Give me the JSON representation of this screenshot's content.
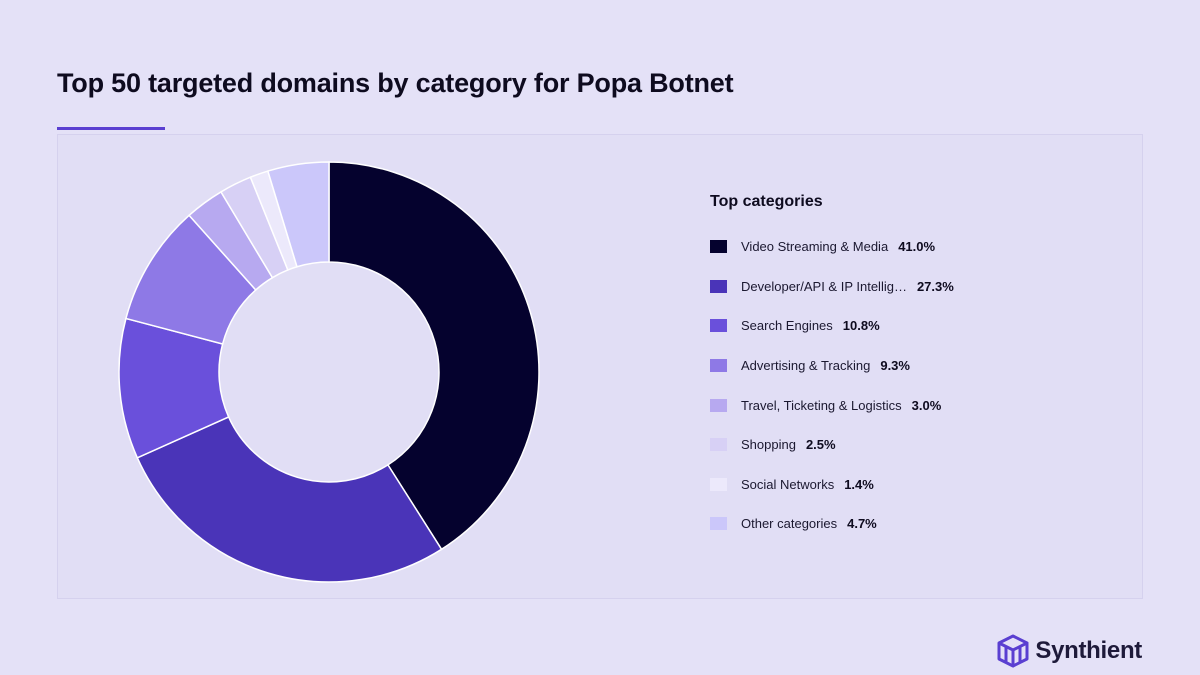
{
  "page": {
    "title": "Top 50 targeted domains by category for Popa Botnet",
    "brand_name": "Synthient"
  },
  "chart_data": {
    "type": "pie",
    "legend_title": "Top categories",
    "legend_position": "right",
    "categories": [
      "Video Streaming & Media",
      "Developer/API & IP Intellig…",
      "Search Engines",
      "Advertising & Tracking",
      "Travel, Ticketing & Logistics",
      "Shopping",
      "Social Networks",
      "Other categories"
    ],
    "values": [
      41.0,
      27.3,
      10.8,
      9.3,
      3.0,
      2.5,
      1.4,
      4.7
    ],
    "value_labels": [
      "41.0%",
      "27.3%",
      "10.8%",
      "9.3%",
      "3.0%",
      "2.5%",
      "1.4%",
      "4.7%"
    ],
    "colors": [
      "#05022E",
      "#4A34B8",
      "#6A50DB",
      "#8E79E6",
      "#B7A9F0",
      "#D7D0F5",
      "#ECE9FB",
      "#CBC7FA"
    ]
  }
}
